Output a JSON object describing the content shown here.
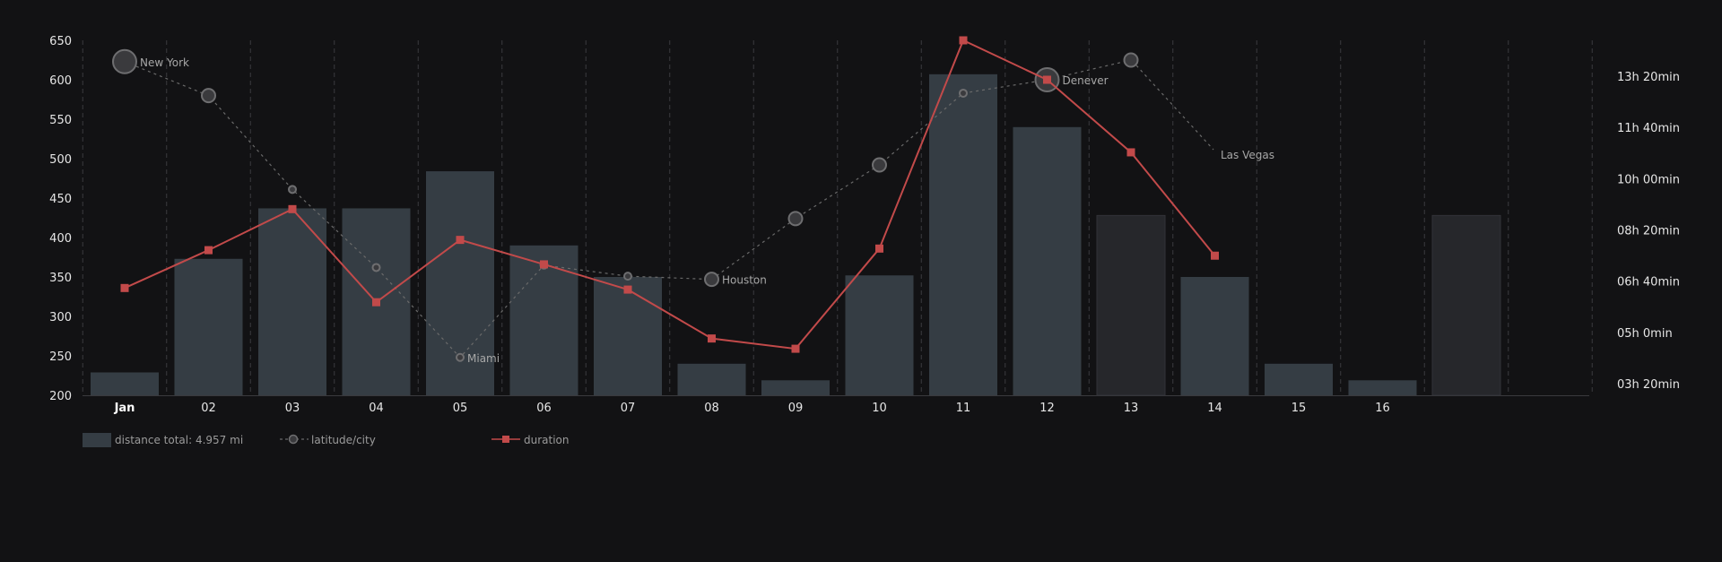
{
  "chart_data": {
    "type": "bar",
    "categories": [
      "Jan",
      "02",
      "03",
      "04",
      "05",
      "06",
      "07",
      "08",
      "09",
      "10",
      "11",
      "12",
      "13",
      "14",
      "15",
      "16",
      "",
      ""
    ],
    "ylim": [
      200,
      650
    ],
    "yticks": [
      200,
      250,
      300,
      350,
      400,
      450,
      500,
      550,
      600,
      650
    ],
    "y2ticks": [
      "03h 20min",
      "05h 0min",
      "06h 40min",
      "08h 20min",
      "10h 00min",
      "11h 40min",
      "13h 20min"
    ],
    "grid": "vertical dashed",
    "series": [
      {
        "name": "distance total: 4.957 mi",
        "type": "bar",
        "values": [
          229,
          373,
          437,
          437,
          484,
          390,
          350,
          240,
          219,
          352,
          607,
          540,
          428,
          350,
          240,
          219,
          428,
          null
        ],
        "highlighted": [
          false,
          false,
          false,
          false,
          false,
          false,
          false,
          false,
          false,
          false,
          false,
          false,
          true,
          false,
          false,
          false,
          true,
          false
        ]
      },
      {
        "name": "latitude/city",
        "type": "scatter-line",
        "values": [
          623,
          580,
          461,
          362,
          248,
          365,
          351,
          347,
          424,
          492,
          583,
          600,
          625,
          null,
          null,
          null,
          null,
          null
        ],
        "sizes": [
          "large",
          "medium",
          "small",
          "small",
          "small",
          "small",
          "small",
          "medium",
          "medium",
          "medium",
          "small",
          "large",
          "medium",
          null,
          null,
          null,
          null,
          null
        ],
        "labels": [
          "New York",
          "",
          "",
          "",
          "Miami",
          "",
          "",
          "Houston",
          "",
          "",
          "",
          "Denever",
          "",
          null,
          null,
          null,
          null,
          null
        ]
      },
      {
        "name": "duration",
        "type": "line",
        "values": [
          336,
          384,
          436,
          318,
          397,
          366,
          334,
          272,
          259,
          386,
          650,
          600,
          508,
          377,
          null,
          null,
          null,
          null
        ]
      }
    ],
    "annotations": [
      {
        "text": "Las Vegas",
        "after_category_index": 12
      }
    ],
    "colors": {
      "bar": "#353d44",
      "bar_highlight": "#26272b",
      "latitude": "#6a6a6a",
      "duration": "#c24a4a",
      "background": "#121214"
    },
    "legend": "bottom-left"
  }
}
